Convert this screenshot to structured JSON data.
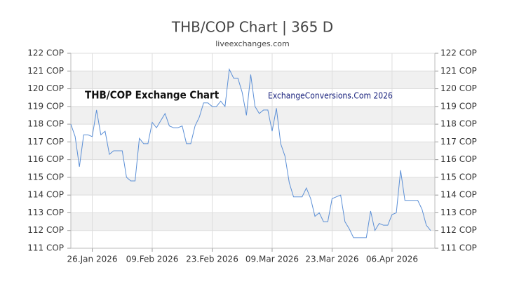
{
  "chart_data": {
    "type": "line",
    "title": "THB/COP Chart | 365 D",
    "subtitle": "liveexchanges.com",
    "annotations": [
      "THB/COP Exchange Chart",
      "ExchangeConversions.Com 2026"
    ],
    "x": [
      "2026-01-21",
      "2026-01-22",
      "2026-01-23",
      "2026-01-24",
      "2026-01-25",
      "2026-01-26",
      "2026-01-27",
      "2026-01-28",
      "2026-01-29",
      "2026-01-30",
      "2026-01-31",
      "2026-02-01",
      "2026-02-02",
      "2026-02-03",
      "2026-02-04",
      "2026-02-05",
      "2026-02-06",
      "2026-02-07",
      "2026-02-08",
      "2026-02-09",
      "2026-02-10",
      "2026-02-11",
      "2026-02-12",
      "2026-02-13",
      "2026-02-14",
      "2026-02-15",
      "2026-02-16",
      "2026-02-17",
      "2026-02-18",
      "2026-02-19",
      "2026-02-20",
      "2026-02-21",
      "2026-02-22",
      "2026-02-23",
      "2026-02-24",
      "2026-02-25",
      "2026-02-26",
      "2026-02-27",
      "2026-02-28",
      "2026-03-01",
      "2026-03-02",
      "2026-03-03",
      "2026-03-04",
      "2026-03-05",
      "2026-03-06",
      "2026-03-07",
      "2026-03-08",
      "2026-03-09",
      "2026-03-10",
      "2026-03-11",
      "2026-03-12",
      "2026-03-13",
      "2026-03-14",
      "2026-03-15",
      "2026-03-16",
      "2026-03-17",
      "2026-03-18",
      "2026-03-19",
      "2026-03-20",
      "2026-03-21",
      "2026-03-22",
      "2026-03-23",
      "2026-03-24",
      "2026-03-25",
      "2026-03-26",
      "2026-03-27",
      "2026-03-28",
      "2026-03-29",
      "2026-03-30",
      "2026-03-31",
      "2026-04-01",
      "2026-04-02",
      "2026-04-03",
      "2026-04-04",
      "2026-04-05",
      "2026-04-06",
      "2026-04-07",
      "2026-04-08",
      "2026-04-09",
      "2026-04-10",
      "2026-04-11",
      "2026-04-12",
      "2026-04-13",
      "2026-04-14",
      "2026-04-15"
    ],
    "series": [
      {
        "name": "THB/COP",
        "color": "#5b8fd6",
        "values": [
          118.0,
          117.3,
          115.6,
          117.4,
          117.4,
          117.3,
          118.8,
          117.4,
          117.6,
          116.3,
          116.5,
          116.5,
          116.5,
          115.0,
          114.8,
          114.8,
          117.2,
          116.9,
          116.9,
          118.1,
          117.8,
          118.2,
          118.6,
          117.9,
          117.8,
          117.8,
          117.9,
          116.9,
          116.9,
          117.9,
          118.4,
          119.2,
          119.2,
          119.0,
          119.0,
          119.3,
          119.0,
          121.1,
          120.6,
          120.6,
          119.8,
          118.5,
          120.8,
          119.0,
          118.6,
          118.8,
          118.8,
          117.6,
          118.9,
          116.9,
          116.2,
          114.7,
          113.9,
          113.9,
          113.9,
          114.4,
          113.8,
          112.8,
          113.0,
          112.5,
          112.5,
          113.8,
          113.9,
          114.0,
          112.5,
          112.1,
          111.6,
          111.6,
          111.6,
          111.6,
          113.1,
          112.0,
          112.4,
          112.3,
          112.3,
          112.9,
          113.0,
          115.4,
          113.7,
          113.7,
          113.7,
          113.7,
          113.2,
          112.3,
          112.0
        ]
      }
    ],
    "xlim": [
      "2026-01-21",
      "2026-04-16"
    ],
    "xticks": [
      {
        "value": "2026-01-26",
        "label": "26.Jan 2026"
      },
      {
        "value": "2026-02-09",
        "label": "09.Feb 2026"
      },
      {
        "value": "2026-02-23",
        "label": "23.Feb 2026"
      },
      {
        "value": "2026-03-09",
        "label": "09.Mar 2026"
      },
      {
        "value": "2026-03-23",
        "label": "23.Mar 2026"
      },
      {
        "value": "2026-04-06",
        "label": "06.Apr 2026"
      }
    ],
    "ylim": [
      111,
      122
    ],
    "yticks": [
      {
        "value": 111,
        "label": "111 COP"
      },
      {
        "value": 112,
        "label": "112 COP"
      },
      {
        "value": 113,
        "label": "113 COP"
      },
      {
        "value": 114,
        "label": "114 COP"
      },
      {
        "value": 115,
        "label": "115 COP"
      },
      {
        "value": 116,
        "label": "116 COP"
      },
      {
        "value": 117,
        "label": "117 COP"
      },
      {
        "value": 118,
        "label": "118 COP"
      },
      {
        "value": 119,
        "label": "119 COP"
      },
      {
        "value": 120,
        "label": "120 COP"
      },
      {
        "value": 121,
        "label": "121 COP"
      },
      {
        "value": 122,
        "label": "122 COP"
      }
    ],
    "grid": true
  }
}
